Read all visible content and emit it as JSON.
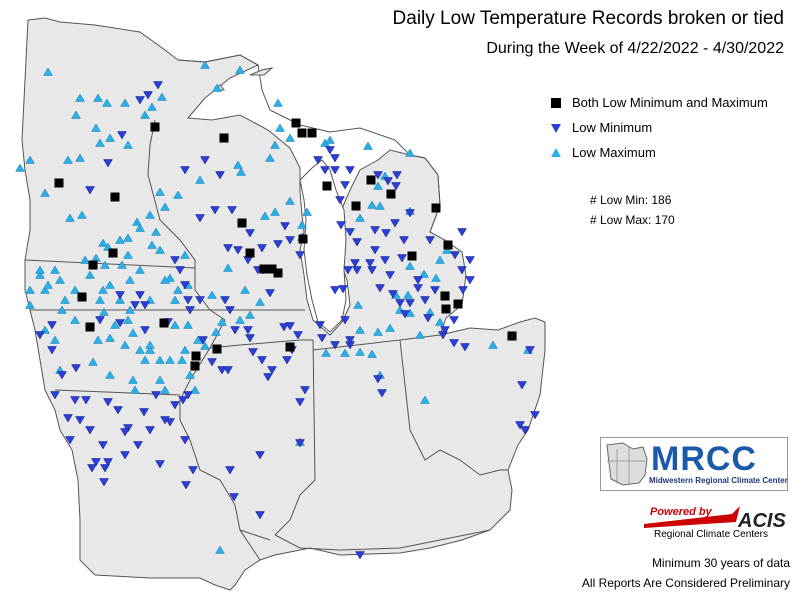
{
  "title": "Daily Low Temperature Records broken or tied",
  "subtitle": "During the Week of 4/22/2022 - 4/30/2022",
  "legend": [
    {
      "symbol": "black-square",
      "label": "Both Low Minimum and Maximum"
    },
    {
      "symbol": "blue-down-triangle",
      "label": "Low Minimum"
    },
    {
      "symbol": "cyan-up-triangle",
      "label": "Low Maximum"
    }
  ],
  "counts": {
    "low_min": "# Low Min: 186",
    "low_max": "# Low Max: 170"
  },
  "logo_mrcc": {
    "name": "MRCC",
    "subtitle": "Midwestern Regional Climate Center"
  },
  "logo_acis": {
    "powered": "Powered by",
    "name": "ACIS",
    "subtitle": "Regional Climate Centers"
  },
  "footer": {
    "line1": "Minimum 30 years of data",
    "line2": "All Reports Are Considered Preliminary"
  },
  "colors": {
    "land": "#e8e8e8",
    "border": "#444444",
    "low_min": "#2a3fd6",
    "low_max": "#2ab0e6",
    "both": "#000000"
  }
}
